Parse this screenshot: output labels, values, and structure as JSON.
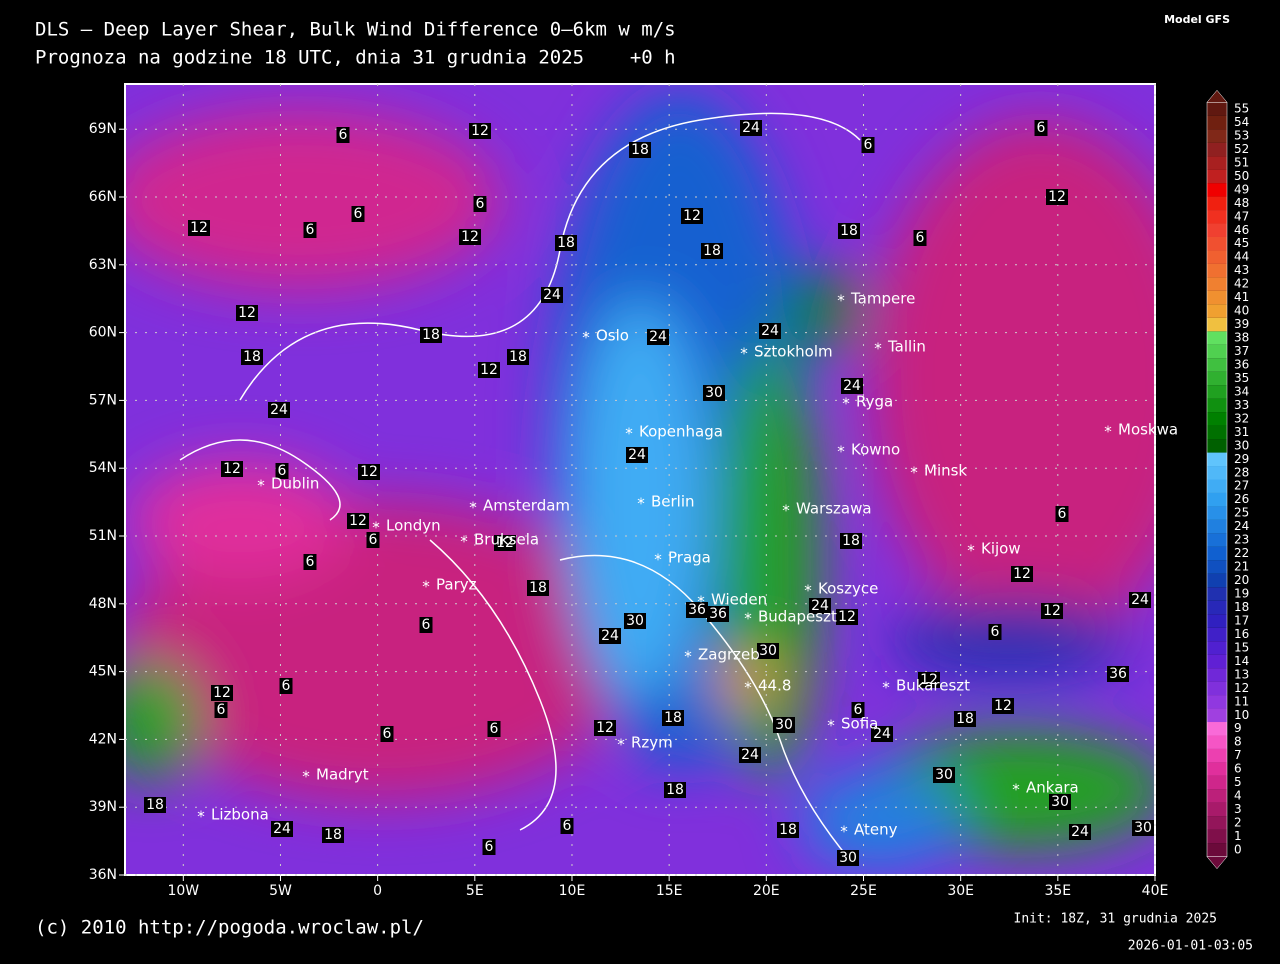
{
  "header": {
    "title": "DLS – Deep Layer Shear, Bulk Wind Difference 0–6km w m/s",
    "subtitle": "Prognoza na godzine 18 UTC, dnia 31 grudnia 2025    +0 h",
    "model": "Model GFS"
  },
  "map": {
    "lon_ticks": [
      {
        "value": -10,
        "label": "10W"
      },
      {
        "value": -5,
        "label": "5W"
      },
      0,
      {
        "value": 5,
        "label": "5E"
      },
      {
        "value": 10,
        "label": "10E"
      },
      {
        "value": 15,
        "label": "15E"
      },
      {
        "value": 20,
        "label": "20E"
      },
      {
        "value": 25,
        "label": "25E"
      },
      {
        "value": 30,
        "label": "30E"
      },
      {
        "value": 35,
        "label": "35E"
      },
      {
        "value": 40,
        "label": "40E"
      }
    ],
    "lat_ticks": [
      {
        "value": 36,
        "label": "36N"
      },
      {
        "value": 39,
        "label": "39N"
      },
      {
        "value": 42,
        "label": "42N"
      },
      {
        "value": 45,
        "label": "45N"
      },
      {
        "value": 48,
        "label": "48N"
      },
      {
        "value": 51,
        "label": "51N"
      },
      {
        "value": 54,
        "label": "54N"
      },
      {
        "value": 57,
        "label": "57N"
      },
      {
        "value": 60,
        "label": "60N"
      },
      {
        "value": 63,
        "label": "63N"
      },
      {
        "value": 66,
        "label": "66N"
      },
      {
        "value": 69,
        "label": "69N"
      }
    ],
    "cities": [
      "Tampere",
      "Oslo",
      "Sztokholm",
      "Tallin",
      "Ryga",
      "Moskwa",
      "Kopenhaga",
      "Kowno",
      "Minsk",
      "Dublin",
      "Amsterdam",
      "Berlin",
      "Warszawa",
      "Londyn",
      "Bruksela",
      "Kijow",
      "Praga",
      "Paryz",
      "Koszyce",
      "Wieden",
      "Budapeszt",
      "Zagrzeb",
      "Bukareszt",
      "Sofia",
      "Rzym",
      "Madryt",
      "Ankara",
      "Lizbona",
      "Ateny",
      "44.8"
    ],
    "contour_labels": [
      6,
      12,
      24,
      6,
      6,
      18,
      12,
      6,
      6,
      6,
      12,
      12,
      18,
      18,
      18,
      6,
      12,
      12,
      18,
      24,
      24,
      24,
      18,
      18,
      12,
      30,
      24,
      24,
      12,
      6,
      12,
      12,
      6,
      12,
      6,
      18,
      18,
      6,
      12,
      12,
      24,
      36,
      36,
      24,
      12,
      24,
      30,
      6,
      6,
      12,
      12,
      18,
      30,
      12,
      6,
      6,
      6,
      6,
      12,
      18,
      6,
      24,
      30,
      24,
      30,
      30,
      36,
      24,
      18,
      24,
      18,
      6,
      18,
      6,
      18,
      30,
      24,
      30
    ]
  },
  "colorbar": {
    "values": [
      0,
      1,
      2,
      3,
      4,
      5,
      6,
      7,
      8,
      9,
      10,
      11,
      12,
      13,
      14,
      15,
      16,
      17,
      18,
      19,
      20,
      21,
      22,
      23,
      24,
      25,
      26,
      27,
      28,
      29,
      30,
      31,
      32,
      33,
      34,
      35,
      36,
      37,
      38,
      39,
      40,
      41,
      42,
      43,
      44,
      45,
      46,
      47,
      48,
      49,
      50,
      51,
      52,
      53,
      54,
      55
    ],
    "colors": [
      "#6b0a3a",
      "#7f0f4a",
      "#93155a",
      "#a81a6a",
      "#bc207a",
      "#cf268b",
      "#e02f9c",
      "#ec40b0",
      "#f555c5",
      "#f96ad8",
      "#a040e0",
      "#9038e0",
      "#8030dc",
      "#7028d8",
      "#6020d4",
      "#5020d0",
      "#4020c8",
      "#3020c0",
      "#2828b8",
      "#2030b0",
      "#1040b0",
      "#1050c0",
      "#1060d0",
      "#1870d8",
      "#2080e0",
      "#2890e8",
      "#30a0f0",
      "#40acf4",
      "#50b8f8",
      "#60c4fc",
      "#006000",
      "#007000",
      "#008000",
      "#109010",
      "#20a020",
      "#30b030",
      "#40c040",
      "#50d050",
      "#60e060",
      "#f0c040",
      "#f0a030",
      "#f09030",
      "#f08030",
      "#f07030",
      "#f06030",
      "#f05030",
      "#f04030",
      "#f03020",
      "#f02010",
      "#f00000",
      "#c02020",
      "#a82020",
      "#902020",
      "#802818",
      "#702010",
      "#601810"
    ]
  },
  "footer": {
    "copyright": "(c) 2010 http://pogoda.wroclaw.pl/",
    "init": "Init: 18Z, 31 grudnia 2025",
    "timestamp": "2026-01-01-03:05"
  }
}
